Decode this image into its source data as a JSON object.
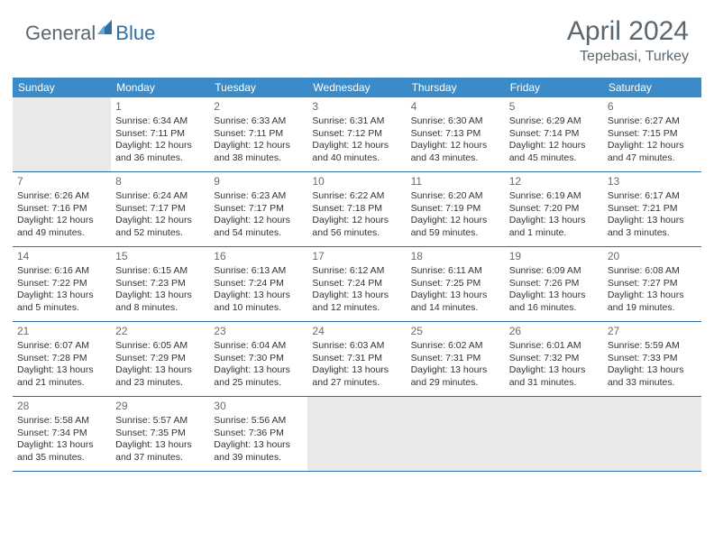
{
  "logo": {
    "general": "General",
    "blue": "Blue"
  },
  "header": {
    "title": "April 2024",
    "location": "Tepebasi, Turkey"
  },
  "colors": {
    "header_bg": "#3b8bc9",
    "divider": "#2f6fa8",
    "empty_bg": "#e9e9e9",
    "text_muted": "#5a6770"
  },
  "weekdays": [
    "Sunday",
    "Monday",
    "Tuesday",
    "Wednesday",
    "Thursday",
    "Friday",
    "Saturday"
  ],
  "weeks": [
    [
      null,
      {
        "n": "1",
        "sr": "Sunrise: 6:34 AM",
        "ss": "Sunset: 7:11 PM",
        "d1": "Daylight: 12 hours",
        "d2": "and 36 minutes."
      },
      {
        "n": "2",
        "sr": "Sunrise: 6:33 AM",
        "ss": "Sunset: 7:11 PM",
        "d1": "Daylight: 12 hours",
        "d2": "and 38 minutes."
      },
      {
        "n": "3",
        "sr": "Sunrise: 6:31 AM",
        "ss": "Sunset: 7:12 PM",
        "d1": "Daylight: 12 hours",
        "d2": "and 40 minutes."
      },
      {
        "n": "4",
        "sr": "Sunrise: 6:30 AM",
        "ss": "Sunset: 7:13 PM",
        "d1": "Daylight: 12 hours",
        "d2": "and 43 minutes."
      },
      {
        "n": "5",
        "sr": "Sunrise: 6:29 AM",
        "ss": "Sunset: 7:14 PM",
        "d1": "Daylight: 12 hours",
        "d2": "and 45 minutes."
      },
      {
        "n": "6",
        "sr": "Sunrise: 6:27 AM",
        "ss": "Sunset: 7:15 PM",
        "d1": "Daylight: 12 hours",
        "d2": "and 47 minutes."
      }
    ],
    [
      {
        "n": "7",
        "sr": "Sunrise: 6:26 AM",
        "ss": "Sunset: 7:16 PM",
        "d1": "Daylight: 12 hours",
        "d2": "and 49 minutes."
      },
      {
        "n": "8",
        "sr": "Sunrise: 6:24 AM",
        "ss": "Sunset: 7:17 PM",
        "d1": "Daylight: 12 hours",
        "d2": "and 52 minutes."
      },
      {
        "n": "9",
        "sr": "Sunrise: 6:23 AM",
        "ss": "Sunset: 7:17 PM",
        "d1": "Daylight: 12 hours",
        "d2": "and 54 minutes."
      },
      {
        "n": "10",
        "sr": "Sunrise: 6:22 AM",
        "ss": "Sunset: 7:18 PM",
        "d1": "Daylight: 12 hours",
        "d2": "and 56 minutes."
      },
      {
        "n": "11",
        "sr": "Sunrise: 6:20 AM",
        "ss": "Sunset: 7:19 PM",
        "d1": "Daylight: 12 hours",
        "d2": "and 59 minutes."
      },
      {
        "n": "12",
        "sr": "Sunrise: 6:19 AM",
        "ss": "Sunset: 7:20 PM",
        "d1": "Daylight: 13 hours",
        "d2": "and 1 minute."
      },
      {
        "n": "13",
        "sr": "Sunrise: 6:17 AM",
        "ss": "Sunset: 7:21 PM",
        "d1": "Daylight: 13 hours",
        "d2": "and 3 minutes."
      }
    ],
    [
      {
        "n": "14",
        "sr": "Sunrise: 6:16 AM",
        "ss": "Sunset: 7:22 PM",
        "d1": "Daylight: 13 hours",
        "d2": "and 5 minutes."
      },
      {
        "n": "15",
        "sr": "Sunrise: 6:15 AM",
        "ss": "Sunset: 7:23 PM",
        "d1": "Daylight: 13 hours",
        "d2": "and 8 minutes."
      },
      {
        "n": "16",
        "sr": "Sunrise: 6:13 AM",
        "ss": "Sunset: 7:24 PM",
        "d1": "Daylight: 13 hours",
        "d2": "and 10 minutes."
      },
      {
        "n": "17",
        "sr": "Sunrise: 6:12 AM",
        "ss": "Sunset: 7:24 PM",
        "d1": "Daylight: 13 hours",
        "d2": "and 12 minutes."
      },
      {
        "n": "18",
        "sr": "Sunrise: 6:11 AM",
        "ss": "Sunset: 7:25 PM",
        "d1": "Daylight: 13 hours",
        "d2": "and 14 minutes."
      },
      {
        "n": "19",
        "sr": "Sunrise: 6:09 AM",
        "ss": "Sunset: 7:26 PM",
        "d1": "Daylight: 13 hours",
        "d2": "and 16 minutes."
      },
      {
        "n": "20",
        "sr": "Sunrise: 6:08 AM",
        "ss": "Sunset: 7:27 PM",
        "d1": "Daylight: 13 hours",
        "d2": "and 19 minutes."
      }
    ],
    [
      {
        "n": "21",
        "sr": "Sunrise: 6:07 AM",
        "ss": "Sunset: 7:28 PM",
        "d1": "Daylight: 13 hours",
        "d2": "and 21 minutes."
      },
      {
        "n": "22",
        "sr": "Sunrise: 6:05 AM",
        "ss": "Sunset: 7:29 PM",
        "d1": "Daylight: 13 hours",
        "d2": "and 23 minutes."
      },
      {
        "n": "23",
        "sr": "Sunrise: 6:04 AM",
        "ss": "Sunset: 7:30 PM",
        "d1": "Daylight: 13 hours",
        "d2": "and 25 minutes."
      },
      {
        "n": "24",
        "sr": "Sunrise: 6:03 AM",
        "ss": "Sunset: 7:31 PM",
        "d1": "Daylight: 13 hours",
        "d2": "and 27 minutes."
      },
      {
        "n": "25",
        "sr": "Sunrise: 6:02 AM",
        "ss": "Sunset: 7:31 PM",
        "d1": "Daylight: 13 hours",
        "d2": "and 29 minutes."
      },
      {
        "n": "26",
        "sr": "Sunrise: 6:01 AM",
        "ss": "Sunset: 7:32 PM",
        "d1": "Daylight: 13 hours",
        "d2": "and 31 minutes."
      },
      {
        "n": "27",
        "sr": "Sunrise: 5:59 AM",
        "ss": "Sunset: 7:33 PM",
        "d1": "Daylight: 13 hours",
        "d2": "and 33 minutes."
      }
    ],
    [
      {
        "n": "28",
        "sr": "Sunrise: 5:58 AM",
        "ss": "Sunset: 7:34 PM",
        "d1": "Daylight: 13 hours",
        "d2": "and 35 minutes."
      },
      {
        "n": "29",
        "sr": "Sunrise: 5:57 AM",
        "ss": "Sunset: 7:35 PM",
        "d1": "Daylight: 13 hours",
        "d2": "and 37 minutes."
      },
      {
        "n": "30",
        "sr": "Sunrise: 5:56 AM",
        "ss": "Sunset: 7:36 PM",
        "d1": "Daylight: 13 hours",
        "d2": "and 39 minutes."
      },
      null,
      null,
      null,
      null
    ]
  ]
}
